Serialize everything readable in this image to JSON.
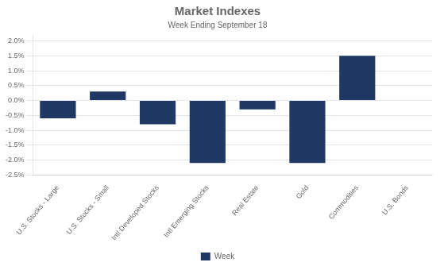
{
  "chart_data": {
    "type": "bar",
    "title": "Market Indexes",
    "subtitle": "Week Ending September 18",
    "categories": [
      "U.S. Stocks - Large",
      "U.S. Stocks - Small",
      "Intl Developed Stocks",
      "Intl Emerging Stocks",
      "Real Estate",
      "Gold",
      "Commodities",
      "U.S. Bonds"
    ],
    "series": [
      {
        "name": "Week",
        "color": "#1F3864",
        "values": [
          -0.006,
          0.003,
          -0.008,
          -0.021,
          -0.003,
          -0.021,
          0.015,
          0.0
        ]
      }
    ],
    "ylim": [
      -0.025,
      0.022
    ],
    "yticks": [
      {
        "value": -0.025,
        "label": "-2.5%"
      },
      {
        "value": -0.02,
        "label": "-2.0%"
      },
      {
        "value": -0.015,
        "label": "-1.5%"
      },
      {
        "value": -0.01,
        "label": "-1.0%"
      },
      {
        "value": -0.005,
        "label": "-0.5%"
      },
      {
        "value": 0.0,
        "label": "0.0%"
      },
      {
        "value": 0.005,
        "label": "0.5%"
      },
      {
        "value": 0.01,
        "label": "1.0%"
      },
      {
        "value": 0.015,
        "label": "1.5%"
      },
      {
        "value": 0.02,
        "label": "2.0%"
      }
    ],
    "grid": true,
    "legend": "bottom"
  }
}
